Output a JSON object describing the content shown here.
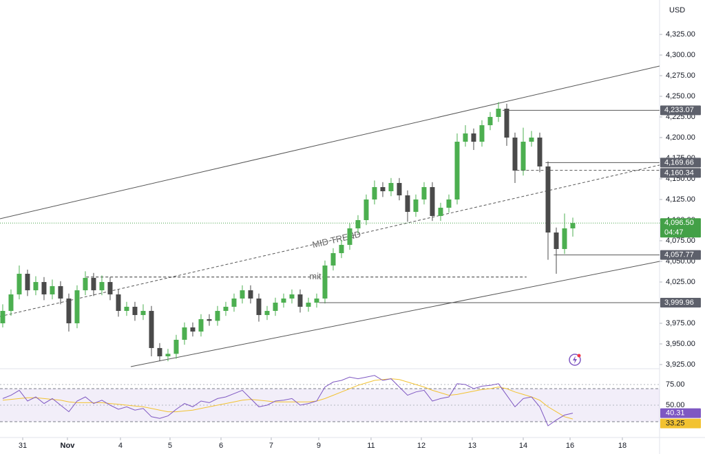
{
  "chart_data": {
    "type": "candlestick",
    "currency": "USD",
    "up_color": "#4caf50",
    "down_color": "#4a4a4a",
    "xlim": [
      -0.33,
      79.5
    ],
    "ylim": [
      3920.8,
      4366.7
    ],
    "xticks": [
      {
        "value": 2.42,
        "label": "31"
      },
      {
        "value": 7.83,
        "label": "Nov"
      },
      {
        "value": 14.25,
        "label": "4"
      },
      {
        "value": 20.25,
        "label": "5"
      },
      {
        "value": 26.42,
        "label": "6"
      },
      {
        "value": 32.5,
        "label": "7"
      },
      {
        "value": 38.25,
        "label": "9"
      },
      {
        "value": 44.58,
        "label": "11"
      },
      {
        "value": 50.67,
        "label": "12"
      },
      {
        "value": 56.83,
        "label": "13"
      },
      {
        "value": 63,
        "label": "14"
      },
      {
        "value": 68.67,
        "label": "16"
      },
      {
        "value": 75,
        "label": "18"
      }
    ],
    "yticks": [
      {
        "value": 4325,
        "label": "4,325.00"
      },
      {
        "value": 4300,
        "label": "4,300.00"
      },
      {
        "value": 4275,
        "label": "4,275.00"
      },
      {
        "value": 4250,
        "label": "4,250.00"
      },
      {
        "value": 4225,
        "label": "4,225.00"
      },
      {
        "value": 4200,
        "label": "4,200.00"
      },
      {
        "value": 4175,
        "label": "4,175.00"
      },
      {
        "value": 4150,
        "label": "4,150.00"
      },
      {
        "value": 4125,
        "label": "4,125.00"
      },
      {
        "value": 4100,
        "label": "4,100.00"
      },
      {
        "value": 4075,
        "label": "4,075.00"
      },
      {
        "value": 4050,
        "label": "4,050.00"
      },
      {
        "value": 4025,
        "label": "4,025.00"
      },
      {
        "value": 4000,
        "label": "4,000.00"
      },
      {
        "value": 3975,
        "label": "3,975.00"
      },
      {
        "value": 3950,
        "label": "3,950.00"
      },
      {
        "value": 3925,
        "label": "3,925.00"
      }
    ],
    "candles": [
      [
        3975,
        3998,
        3970,
        3990
      ],
      [
        3990,
        4016,
        3984,
        4010
      ],
      [
        4010,
        4045,
        4004,
        4035
      ],
      [
        4035,
        4040,
        4008,
        4015
      ],
      [
        4015,
        4032,
        4009,
        4025
      ],
      [
        4025,
        4031,
        4003,
        4010
      ],
      [
        4010,
        4028,
        4004,
        4020
      ],
      [
        4020,
        4026,
        3998,
        4005
      ],
      [
        4005,
        4011,
        3965,
        3975
      ],
      [
        3975,
        4021,
        3969,
        4015
      ],
      [
        4015,
        4038,
        4009,
        4030
      ],
      [
        4030,
        4036,
        4008,
        4015
      ],
      [
        4015,
        4033,
        4009,
        4025
      ],
      [
        4025,
        4031,
        4003,
        4010
      ],
      [
        4010,
        4016,
        3983,
        3990
      ],
      [
        3990,
        4001,
        3984,
        3995
      ],
      [
        3995,
        4001,
        3978,
        3985
      ],
      [
        3985,
        3998,
        3979,
        3990
      ],
      [
        3990,
        3996,
        3935,
        3945
      ],
      [
        3945,
        3951,
        3929,
        3935
      ],
      [
        3935,
        3944,
        3929,
        3938
      ],
      [
        3938,
        3961,
        3932,
        3955
      ],
      [
        3955,
        3976,
        3949,
        3970
      ],
      [
        3970,
        3976,
        3959,
        3965
      ],
      [
        3965,
        3986,
        3959,
        3980
      ],
      [
        3980,
        3986,
        3972,
        3978
      ],
      [
        3978,
        3996,
        3972,
        3990
      ],
      [
        3990,
        4001,
        3984,
        3995
      ],
      [
        3995,
        4011,
        3989,
        4005
      ],
      [
        4005,
        4021,
        3999,
        4015
      ],
      [
        4015,
        4021,
        3999,
        4005
      ],
      [
        4005,
        4011,
        3977,
        3985
      ],
      [
        3985,
        3996,
        3979,
        3990
      ],
      [
        3990,
        4006,
        3984,
        4000
      ],
      [
        4000,
        4011,
        3994,
        4005
      ],
      [
        4005,
        4016,
        3999,
        4010
      ],
      [
        4010,
        4016,
        3988,
        3995
      ],
      [
        3995,
        4006,
        3989,
        4000
      ],
      [
        4000,
        4011,
        3994,
        4005
      ],
      [
        4005,
        4051,
        3999,
        4045
      ],
      [
        4045,
        4066,
        4039,
        4060
      ],
      [
        4060,
        4076,
        4054,
        4070
      ],
      [
        4070,
        4096,
        4064,
        4090
      ],
      [
        4090,
        4106,
        4084,
        4100
      ],
      [
        4100,
        4131,
        4094,
        4125
      ],
      [
        4125,
        4148,
        4119,
        4140
      ],
      [
        4140,
        4146,
        4128,
        4135
      ],
      [
        4135,
        4151,
        4129,
        4145
      ],
      [
        4145,
        4151,
        4124,
        4130
      ],
      [
        4130,
        4136,
        4098,
        4110
      ],
      [
        4110,
        4131,
        4104,
        4125
      ],
      [
        4125,
        4146,
        4119,
        4140
      ],
      [
        4140,
        4146,
        4099,
        4105
      ],
      [
        4105,
        4121,
        4099,
        4115
      ],
      [
        4115,
        4131,
        4109,
        4125
      ],
      [
        4125,
        4205,
        4119,
        4195
      ],
      [
        4195,
        4215,
        4189,
        4205
      ],
      [
        4205,
        4211,
        4185,
        4195
      ],
      [
        4195,
        4221,
        4189,
        4215
      ],
      [
        4215,
        4231,
        4209,
        4225
      ],
      [
        4225,
        4243,
        4219,
        4235
      ],
      [
        4235,
        4241,
        4190,
        4200
      ],
      [
        4200,
        4206,
        4145,
        4160
      ],
      [
        4160,
        4212,
        4154,
        4195
      ],
      [
        4195,
        4208,
        4189,
        4200
      ],
      [
        4200,
        4206,
        4158,
        4165
      ],
      [
        4165,
        4171,
        4052,
        4085
      ],
      [
        4085,
        4091,
        4035,
        4065
      ],
      [
        4065,
        4108,
        4059,
        4090
      ],
      [
        4090,
        4103,
        4080,
        4096.5
      ]
    ],
    "trend_lines": [
      {
        "x": [
          -0.33,
          79.5
        ],
        "y": [
          4101.7,
          4286.7
        ],
        "dashed": false
      },
      {
        "x": [
          15.5,
          79.5
        ],
        "y": [
          3922.5,
          4050
        ],
        "dashed": false
      },
      {
        "x": [
          -0.33,
          79.5
        ],
        "y": [
          3983.3,
          4166.7
        ],
        "dashed": true
      }
    ],
    "annotations": [
      {
        "text": "MID TREND"
      },
      {
        "text": "mit",
        "x": [
          10.1,
          63.4
        ],
        "y": 4031
      }
    ],
    "price_lines": [
      {
        "value": 4233.07,
        "label": "4,233.07",
        "from": 60.5,
        "dashed": false
      },
      {
        "value": 4169.66,
        "label": "4,169.66",
        "from": 65.7,
        "dashed": false
      },
      {
        "value": 4160.34,
        "label": "4,160.34",
        "from": 62.2,
        "dashed": true
      },
      {
        "value": 4057.77,
        "label": "4,057.77",
        "from": 66.7,
        "dashed": false
      },
      {
        "value": 3999.96,
        "label": "3,999.96",
        "from": 38.3,
        "dashed": false
      }
    ],
    "current_price": {
      "value": 4096.5,
      "label": "4,096.50",
      "countdown": "04:47",
      "color": "#43a047"
    },
    "indicator": {
      "ylim": [
        11.7,
        90.8
      ],
      "yticks": [
        {
          "value": 75,
          "label": "75.00"
        },
        {
          "value": 50,
          "label": "50.00"
        }
      ],
      "band": [
        30,
        70
      ],
      "rsi": {
        "color": "#7e57c2",
        "last": {
          "value": 40.31,
          "label": "40.31"
        },
        "values": [
          58,
          62,
          68,
          55,
          60,
          52,
          58,
          50,
          42,
          55,
          60,
          52,
          56,
          50,
          45,
          48,
          44,
          46,
          36,
          34,
          37,
          45,
          52,
          48,
          55,
          53,
          58,
          60,
          64,
          68,
          58,
          48,
          50,
          55,
          56,
          58,
          50,
          52,
          55,
          72,
          78,
          80,
          84,
          82,
          84,
          86,
          80,
          82,
          72,
          62,
          66,
          68,
          55,
          58,
          60,
          76,
          75,
          70,
          73,
          74,
          76,
          62,
          48,
          58,
          60,
          48,
          25,
          32,
          38,
          40.31
        ]
      },
      "ma": {
        "color": "#f2c230",
        "last": {
          "value": 33.25,
          "label": "33.25"
        },
        "values": [
          56,
          57,
          58,
          59,
          59,
          58,
          57,
          56,
          54,
          53,
          53,
          53,
          53,
          52,
          51,
          50,
          49,
          48,
          46,
          44,
          42,
          42,
          43,
          44,
          46,
          48,
          50,
          52,
          54,
          56,
          57,
          56,
          55,
          54,
          54,
          54,
          54,
          54,
          55,
          58,
          62,
          66,
          70,
          74,
          77,
          80,
          81,
          82,
          81,
          78,
          75,
          72,
          68,
          65,
          62,
          63,
          65,
          67,
          69,
          70,
          72,
          70,
          66,
          63,
          60,
          56,
          48,
          42,
          36,
          33.25
        ]
      }
    }
  }
}
